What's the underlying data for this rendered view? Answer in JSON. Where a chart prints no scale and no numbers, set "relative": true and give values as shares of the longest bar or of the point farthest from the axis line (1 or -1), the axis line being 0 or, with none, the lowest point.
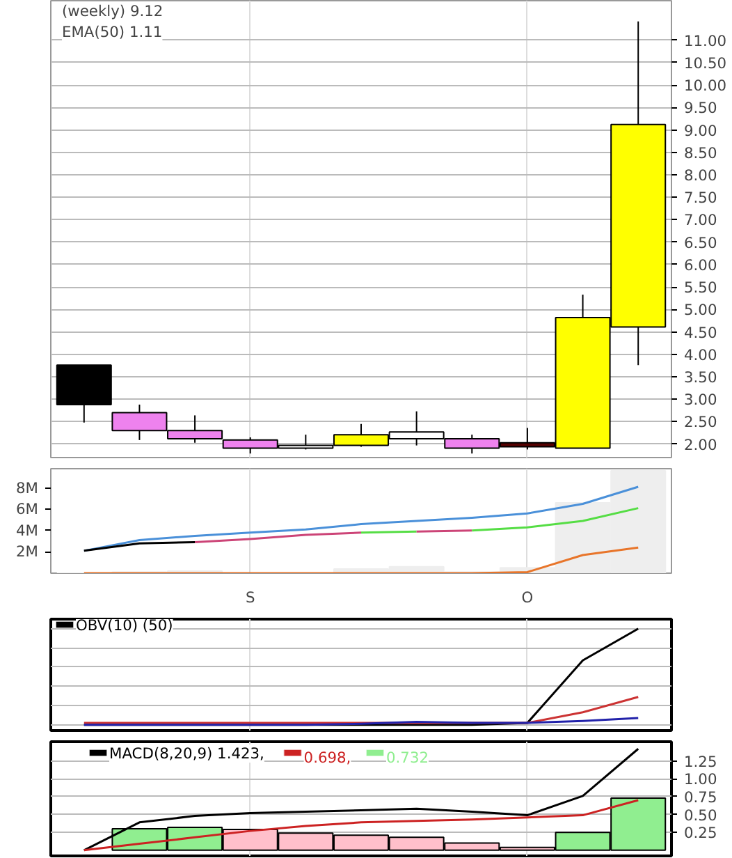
{
  "chart_data": [
    {
      "type": "candlestick",
      "title": "(weekly) 9.12",
      "annotations": [
        "EMA(50) 1.11"
      ],
      "categories": [
        null,
        null,
        null,
        null,
        null,
        null,
        null,
        null,
        null,
        null,
        null
      ],
      "ohlc": [
        [
          3.76,
          3.76,
          2.48,
          2.88
        ],
        [
          2.7,
          2.88,
          2.09,
          2.3
        ],
        [
          2.3,
          2.64,
          2.03,
          2.12
        ],
        [
          2.09,
          2.15,
          1.79,
          1.91
        ],
        [
          1.91,
          2.21,
          1.88,
          1.97
        ],
        [
          1.97,
          2.45,
          1.94,
          2.21
        ],
        [
          2.12,
          2.73,
          1.97,
          2.27
        ],
        [
          2.12,
          2.21,
          1.79,
          1.91
        ],
        [
          2.03,
          2.36,
          1.88,
          1.94
        ],
        [
          1.91,
          5.33,
          1.91,
          4.82
        ],
        [
          4.61,
          11.42,
          3.76,
          9.12
        ]
      ],
      "colors": [
        "#000000",
        "#ee82ee",
        "#ee82ee",
        "#ee82ee",
        "#ffffff",
        "#ffff00",
        "#ffffff",
        "#ee82ee",
        "#550000",
        "#ffff00",
        "#ffff00"
      ],
      "ylim": [
        1.7,
        11.88
      ],
      "yticks": [
        {
          "value": 2,
          "label": "2.00"
        },
        {
          "value": 2.5,
          "label": "2.50"
        },
        {
          "value": 3,
          "label": "3.00"
        },
        {
          "value": 3.5,
          "label": "3.50"
        },
        {
          "value": 4,
          "label": "4.00"
        },
        {
          "value": 4.5,
          "label": "4.50"
        },
        {
          "value": 5,
          "label": "5.00"
        },
        {
          "value": 5.5,
          "label": "5.50"
        },
        {
          "value": 6,
          "label": "6.00"
        },
        {
          "value": 6.5,
          "label": "6.50"
        },
        {
          "value": 7,
          "label": "7.00"
        },
        {
          "value": 7.5,
          "label": "7.50"
        },
        {
          "value": 8,
          "label": "8.00"
        },
        {
          "value": 8.5,
          "label": "8.50"
        },
        {
          "value": 9,
          "label": "9.00"
        },
        {
          "value": 9.5,
          "label": "9.50"
        },
        {
          "value": 10,
          "label": "10.00"
        },
        {
          "value": 10.5,
          "label": "10.50"
        },
        {
          "value": 11,
          "label": "11.00"
        }
      ],
      "grid": true,
      "tick_labels": "y"
    },
    {
      "type": "bar",
      "categories": [
        null,
        null,
        null,
        "S",
        null,
        null,
        null,
        null,
        "O",
        null,
        null
      ],
      "ylim": [
        0,
        9.8
      ],
      "yticks": [
        {
          "value": 2,
          "label": "2M"
        },
        {
          "value": 4,
          "label": "4M"
        },
        {
          "value": 6,
          "label": "6M"
        },
        {
          "value": 8,
          "label": "8M"
        }
      ],
      "grid": "x",
      "series": [
        {
          "type": "bar",
          "color": "#eeeeee",
          "values": [
            0,
            0.1,
            0.2,
            0,
            0,
            0.4,
            0.6,
            0.1,
            0.5,
            6.6,
            9.6
          ]
        },
        {
          "type": "line",
          "color": "#4a90d9",
          "values": [
            2.1,
            3.1,
            3.5,
            3.8,
            4.1,
            4.6,
            4.9,
            5.2,
            5.6,
            6.5,
            8.1
          ]
        },
        {
          "type": "line",
          "color": "#000000",
          "values": [
            2.1,
            2.8,
            2.9,
            null,
            null,
            null,
            null,
            null,
            null,
            null,
            null
          ]
        },
        {
          "type": "line",
          "color": "#cc4477",
          "values": [
            null,
            null,
            2.9,
            3.2,
            3.6,
            3.8,
            null,
            null,
            null,
            null,
            null
          ]
        },
        {
          "type": "line",
          "color": "#55dd44",
          "values": [
            null,
            null,
            null,
            null,
            null,
            3.8,
            3.9,
            null,
            null,
            null,
            null
          ]
        },
        {
          "type": "line",
          "color": "#cc4477",
          "values": [
            null,
            null,
            null,
            null,
            null,
            null,
            3.9,
            4.0,
            null,
            null,
            null
          ]
        },
        {
          "type": "line",
          "color": "#55dd44",
          "values": [
            null,
            null,
            null,
            null,
            null,
            null,
            null,
            4.0,
            4.3,
            4.9,
            6.1
          ]
        },
        {
          "type": "line",
          "color": "#e8752a",
          "values": [
            0,
            0,
            0,
            0,
            0,
            0,
            0,
            0,
            0.1,
            1.7,
            2.4
          ]
        }
      ]
    },
    {
      "type": "line",
      "relative": true,
      "legend": "top left",
      "tick_labels": false,
      "grid": true,
      "categories": [
        null,
        null,
        null,
        null,
        null,
        null,
        null,
        null,
        null,
        null,
        null
      ],
      "series": [
        {
          "name": "OBV(10) (50)",
          "color": "#000000",
          "values": [
            0,
            0,
            0,
            0,
            0,
            0,
            0,
            0,
            0.02,
            0.67,
            1
          ]
        },
        {
          "color": "#cc3333",
          "values": [
            0.02,
            0.02,
            0.02,
            0.02,
            0.02,
            0.02,
            0.02,
            0.02,
            0.02,
            0.13,
            0.29
          ]
        },
        {
          "color": "#2222aa",
          "values": [
            0,
            0,
            0,
            0,
            0,
            0.01,
            0.03,
            0.02,
            0.02,
            0.04,
            0.07
          ]
        }
      ]
    },
    {
      "type": "bar",
      "legend": "top left",
      "tick_labels": "y",
      "grid": true,
      "categories": [
        null,
        null,
        null,
        null,
        null,
        null,
        null,
        null,
        null,
        null,
        null
      ],
      "ylim": [
        -0.08,
        1.52
      ],
      "yticks": [
        {
          "value": 0.25,
          "label": "0.25"
        },
        {
          "value": 0.5,
          "label": "0.50"
        },
        {
          "value": 0.75,
          "label": "0.75"
        },
        {
          "value": 1,
          "label": "1.00"
        },
        {
          "value": 1.25,
          "label": "1.25"
        }
      ],
      "series": [
        {
          "type": "line",
          "name": "MACD(8,20,9) 1.423,",
          "color": "#000000",
          "values": [
            0,
            0.39,
            0.48,
            0.52,
            0.54,
            0.56,
            0.58,
            0.54,
            0.49,
            0.76,
            1.42
          ]
        },
        {
          "type": "line",
          "name": "0.698,",
          "color": "#cc2222",
          "values": [
            0,
            0.09,
            0.18,
            0.27,
            0.34,
            0.39,
            0.41,
            0.43,
            0.46,
            0.49,
            0.7
          ]
        },
        {
          "type": "bar",
          "name": "0.732",
          "colors": [
            "#90ee90",
            "#90ee90",
            "#90ee90",
            "#ffc0cb",
            "#ffc0cb",
            "#ffc0cb",
            "#ffc0cb",
            "#ffc0cb",
            "#ffc0cb",
            "#90ee90",
            "#90ee90"
          ],
          "values": [
            null,
            0.3,
            0.32,
            0.29,
            0.24,
            0.21,
            0.18,
            0.1,
            0.04,
            0.25,
            0.73
          ]
        }
      ]
    }
  ]
}
